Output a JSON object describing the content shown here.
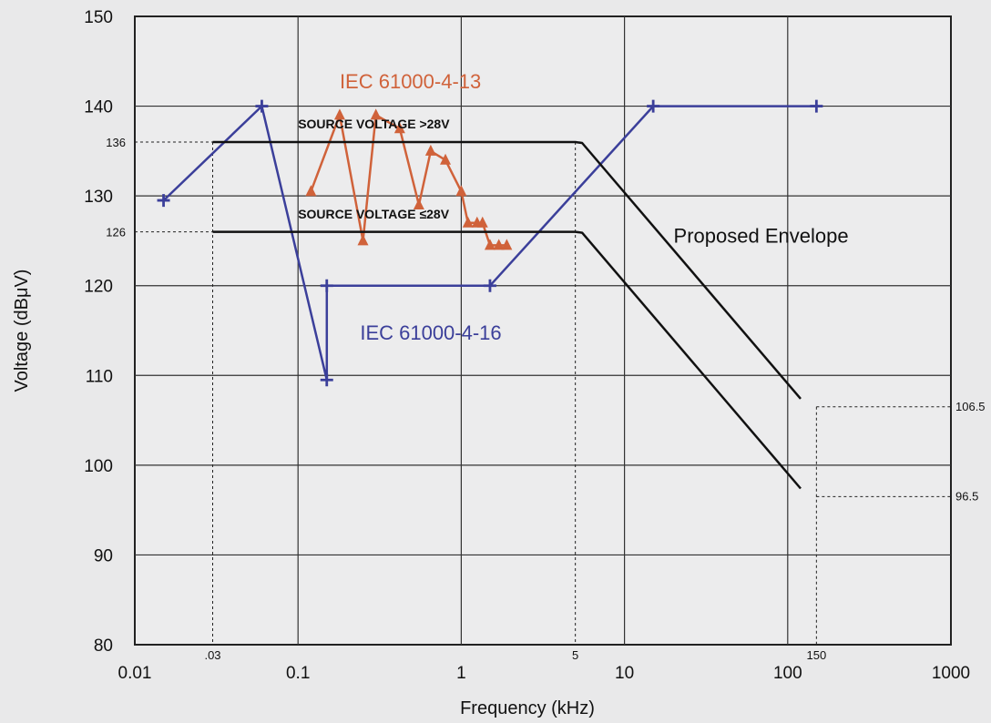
{
  "chart_data": {
    "type": "line",
    "xlabel": "Frequency (kHz)",
    "ylabel": "Voltage (dBμV)",
    "xscale": "log",
    "xlim": [
      0.01,
      1000
    ],
    "ylim": [
      80,
      150
    ],
    "grid": true,
    "x_ticks": [
      {
        "value": 0.01,
        "label": "0.01"
      },
      {
        "value": 0.1,
        "label": "0.1"
      },
      {
        "value": 1,
        "label": "1"
      },
      {
        "value": 10,
        "label": "10"
      },
      {
        "value": 100,
        "label": "100"
      },
      {
        "value": 1000,
        "label": "1000"
      }
    ],
    "x_ref_ticks": [
      {
        "value": 0.03,
        "label": ".03"
      },
      {
        "value": 5,
        "label": "5"
      },
      {
        "value": 150,
        "label": "150"
      }
    ],
    "y_ticks": [
      {
        "value": 80,
        "label": "80"
      },
      {
        "value": 90,
        "label": "90"
      },
      {
        "value": 100,
        "label": "100"
      },
      {
        "value": 110,
        "label": "110"
      },
      {
        "value": 120,
        "label": "120"
      },
      {
        "value": 130,
        "label": "130"
      },
      {
        "value": 140,
        "label": "140"
      },
      {
        "value": 150,
        "label": "150"
      }
    ],
    "y_ref_ticks": [
      {
        "value": 136,
        "label": "136"
      },
      {
        "value": 126,
        "label": "126"
      }
    ],
    "right_ref_labels": [
      {
        "value": 106.5,
        "label": "106.5"
      },
      {
        "value": 96.5,
        "label": "96.5"
      }
    ],
    "series": [
      {
        "name": "IEC 61000-4-16",
        "color": "#3b3f9a",
        "marker": "plus",
        "x": [
          0.015,
          0.06,
          0.15,
          0.15,
          1.5,
          15,
          150
        ],
        "y": [
          129.5,
          140,
          109.5,
          120,
          120,
          140,
          140
        ]
      },
      {
        "name": "IEC 61000-4-13",
        "color": "#d0623a",
        "marker": "triangle",
        "x": [
          0.12,
          0.18,
          0.25,
          0.3,
          0.42,
          0.55,
          0.65,
          0.8,
          1.0,
          1.1,
          1.25,
          1.35,
          1.5,
          1.7,
          1.9
        ],
        "y": [
          130.5,
          139,
          125,
          139,
          137.5,
          129,
          135,
          134,
          130.5,
          127,
          127,
          127,
          124.5,
          124.5,
          124.5
        ]
      },
      {
        "name": "SOURCE VOLTAGE >28V",
        "color": "#111111",
        "marker": "none",
        "x": [
          0.03,
          5,
          5.5,
          120
        ],
        "y": [
          136,
          136,
          135.9,
          107.4
        ]
      },
      {
        "name": "SOURCE VOLTAGE ≤28V",
        "color": "#111111",
        "marker": "none",
        "x": [
          0.03,
          5,
          5.5,
          120
        ],
        "y": [
          126,
          126,
          125.9,
          97.4
        ]
      }
    ],
    "annotations": [
      {
        "text": "IEC 61000-4-13",
        "x": 0.18,
        "y": 142
      },
      {
        "text": "SOURCE VOLTAGE >28V",
        "x": 0.1,
        "y": 137.5
      },
      {
        "text": "SOURCE VOLTAGE ≤28V",
        "x": 0.1,
        "y": 127.5
      },
      {
        "text": "Proposed Envelope",
        "x": 20,
        "y": 124.8
      },
      {
        "text": "IEC 61000-4-16",
        "x": 0.24,
        "y": 114
      }
    ]
  }
}
